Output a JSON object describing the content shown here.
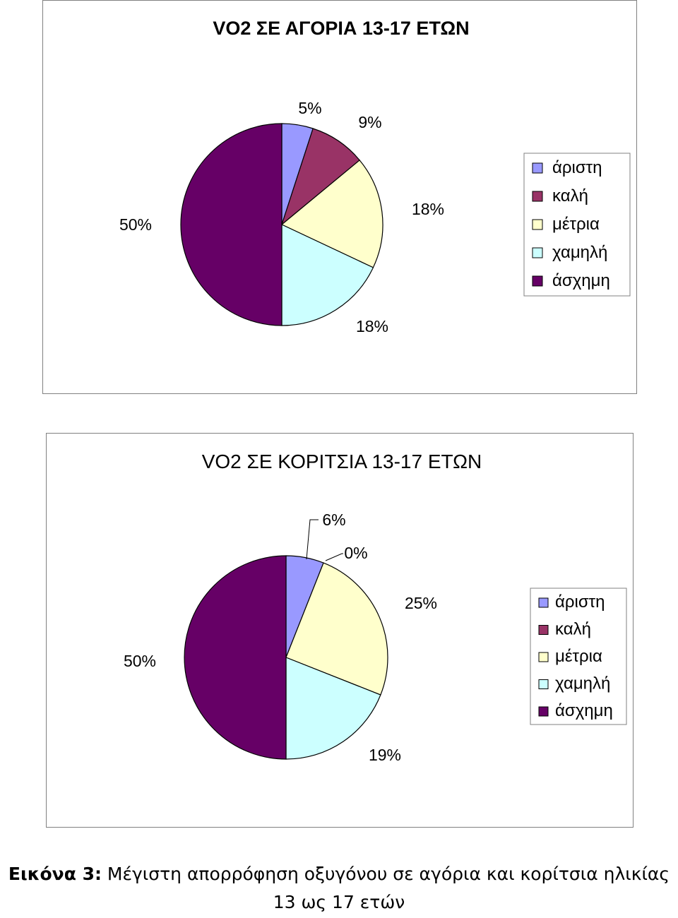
{
  "legend_labels": [
    "άριστη",
    "καλή",
    "μέτρια",
    "χαμηλή",
    "άσχημη"
  ],
  "colors": [
    "#9999ff",
    "#993366",
    "#ffffcc",
    "#ccffff",
    "#660066"
  ],
  "chart_data": [
    {
      "type": "pie",
      "title": "VO2 ΣΕ ΑΓΟΡΙΑ 13-17 ΕΤΩΝ",
      "categories": [
        "άριστη",
        "καλή",
        "μέτρια",
        "χαμηλή",
        "άσχημη"
      ],
      "values": [
        5,
        9,
        18,
        18,
        50
      ],
      "labels": [
        "5%",
        "9%",
        "18%",
        "18%",
        "50%"
      ],
      "legend": "right"
    },
    {
      "type": "pie",
      "title": "VO2 ΣΕ ΚΟΡΙΤΣΙΑ 13-17 ΕΤΩΝ",
      "categories": [
        "άριστη",
        "καλή",
        "μέτρια",
        "χαμηλή",
        "άσχημη"
      ],
      "values": [
        6,
        0,
        25,
        19,
        50
      ],
      "labels": [
        "6%",
        "0%",
        "25%",
        "19%",
        "50%"
      ],
      "legend": "right"
    }
  ],
  "caption": {
    "prefix": "Εικόνα 3:",
    "text": " Μέγιστη απορρόφηση οξυγόνου σε αγόρια και κορίτσια ηλικίας 13 ως 17 ετών"
  }
}
